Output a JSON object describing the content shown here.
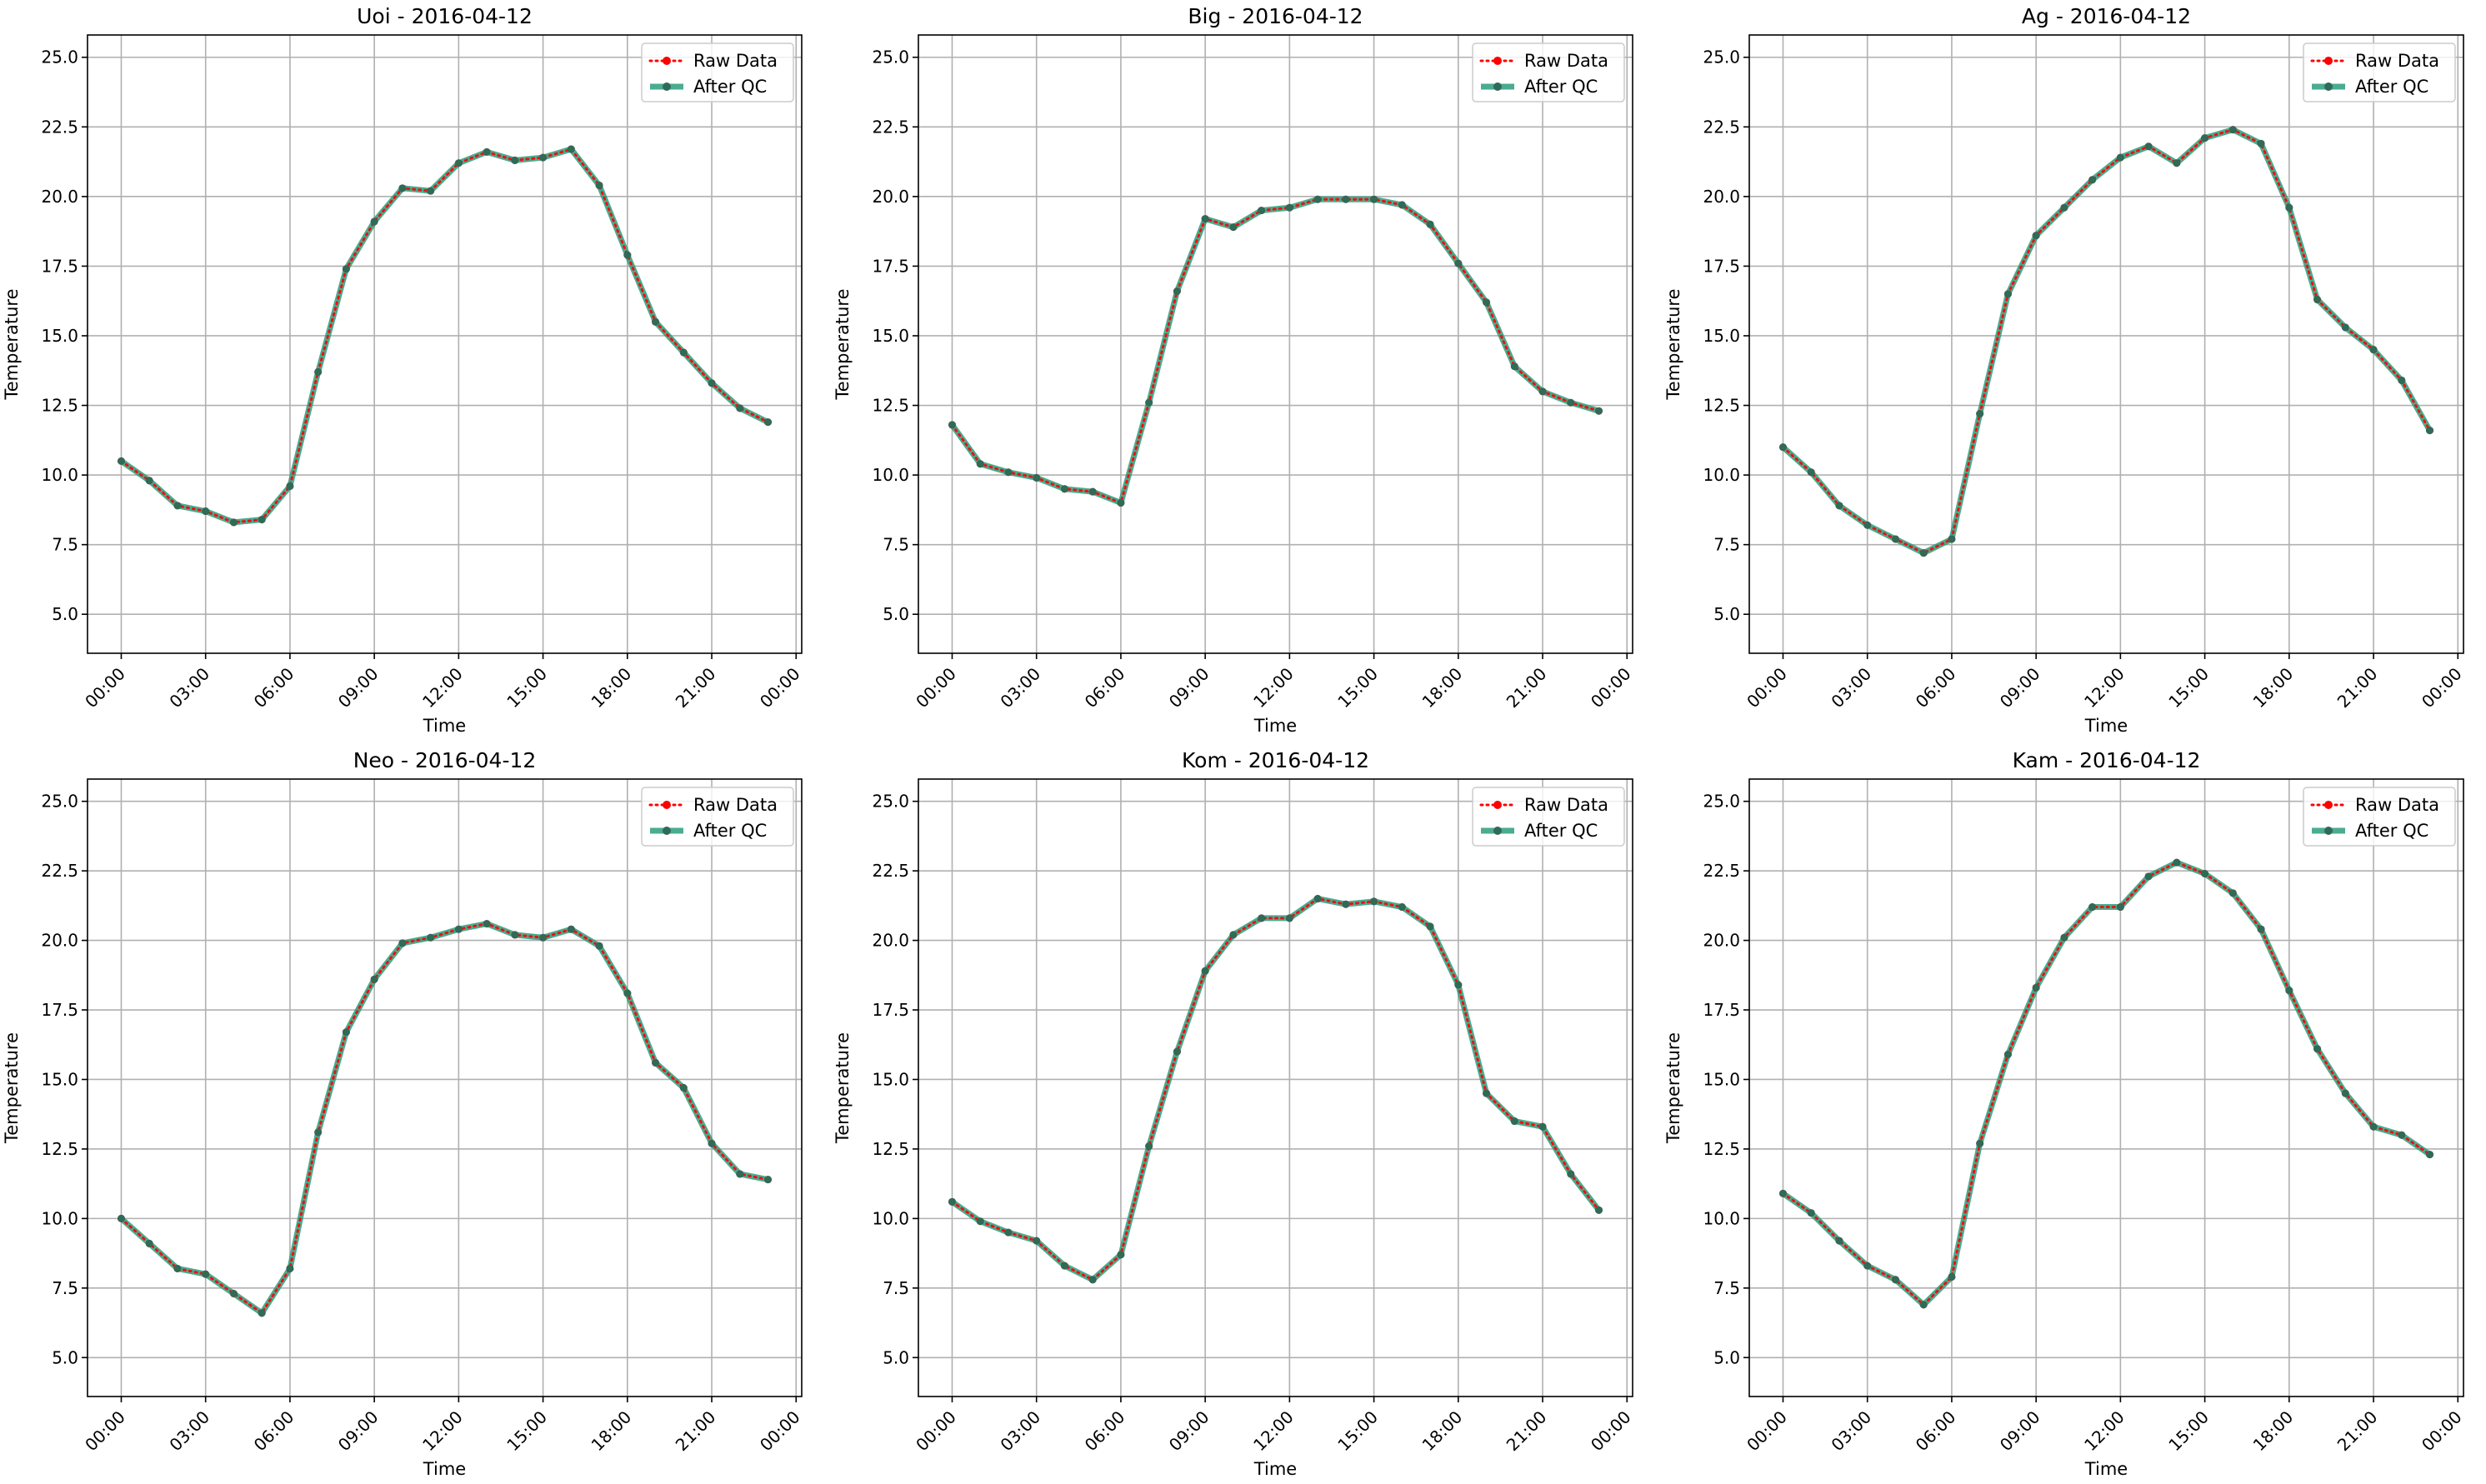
{
  "figure": {
    "title": "",
    "date": "2016-04-12"
  },
  "legend": [
    {
      "label": "Raw Data",
      "color": "#ff0000",
      "style": "dotted"
    },
    {
      "label": "After QC",
      "color": "#2a9d7c",
      "style": "solid"
    }
  ],
  "colors": {
    "raw": "#ff0000",
    "qc": "#2a9d7c",
    "qc_marker": "#2f6b58",
    "grid": "#b0b0b0"
  },
  "chart_data": [
    {
      "type": "line",
      "title": "Uoi - 2016-04-12",
      "xlabel": "Time",
      "ylabel": "Temperature",
      "ylim": [
        3.6,
        25.8
      ],
      "yticks": [
        "5.0",
        "7.5",
        "10.0",
        "12.5",
        "15.0",
        "17.5",
        "20.0",
        "22.5",
        "25.0"
      ],
      "xticks": [
        "00:00",
        "03:00",
        "06:00",
        "09:00",
        "12:00",
        "15:00",
        "18:00",
        "21:00",
        "00:00"
      ],
      "grid": true,
      "legend_position": "top-right",
      "x": [
        "00:00",
        "01:00",
        "02:00",
        "03:00",
        "04:00",
        "05:00",
        "06:00",
        "07:00",
        "08:00",
        "09:00",
        "10:00",
        "11:00",
        "12:00",
        "13:00",
        "14:00",
        "15:00",
        "16:00",
        "17:00",
        "18:00",
        "19:00",
        "20:00",
        "21:00",
        "22:00",
        "23:00"
      ],
      "series": [
        {
          "name": "Raw Data",
          "values": [
            10.5,
            9.8,
            8.9,
            8.7,
            8.3,
            8.4,
            9.6,
            13.7,
            17.4,
            19.1,
            20.3,
            20.2,
            21.2,
            21.6,
            21.3,
            21.4,
            21.7,
            20.4,
            17.9,
            15.5,
            14.4,
            13.3,
            12.4,
            11.9
          ]
        },
        {
          "name": "After QC",
          "values": [
            10.5,
            9.8,
            8.9,
            8.7,
            8.3,
            8.4,
            9.6,
            13.7,
            17.4,
            19.1,
            20.3,
            20.2,
            21.2,
            21.6,
            21.3,
            21.4,
            21.7,
            20.4,
            17.9,
            15.5,
            14.4,
            13.3,
            12.4,
            11.9
          ]
        }
      ]
    },
    {
      "type": "line",
      "title": "Big - 2016-04-12",
      "xlabel": "Time",
      "ylabel": "Temperature",
      "ylim": [
        3.6,
        25.8
      ],
      "yticks": [
        "5.0",
        "7.5",
        "10.0",
        "12.5",
        "15.0",
        "17.5",
        "20.0",
        "22.5",
        "25.0"
      ],
      "xticks": [
        "00:00",
        "03:00",
        "06:00",
        "09:00",
        "12:00",
        "15:00",
        "18:00",
        "21:00",
        "00:00"
      ],
      "grid": true,
      "legend_position": "top-right",
      "x": [
        "00:00",
        "01:00",
        "02:00",
        "03:00",
        "04:00",
        "05:00",
        "06:00",
        "07:00",
        "08:00",
        "09:00",
        "10:00",
        "11:00",
        "12:00",
        "13:00",
        "14:00",
        "15:00",
        "16:00",
        "17:00",
        "18:00",
        "19:00",
        "20:00",
        "21:00",
        "22:00",
        "23:00"
      ],
      "series": [
        {
          "name": "Raw Data",
          "values": [
            11.8,
            10.4,
            10.1,
            9.9,
            9.5,
            9.4,
            9.0,
            12.6,
            16.6,
            19.2,
            18.9,
            19.5,
            19.6,
            19.9,
            19.9,
            19.9,
            19.7,
            19.0,
            17.6,
            16.2,
            13.9,
            13.0,
            12.6,
            12.3
          ]
        },
        {
          "name": "After QC",
          "values": [
            11.8,
            10.4,
            10.1,
            9.9,
            9.5,
            9.4,
            9.0,
            12.6,
            16.6,
            19.2,
            18.9,
            19.5,
            19.6,
            19.9,
            19.9,
            19.9,
            19.7,
            19.0,
            17.6,
            16.2,
            13.9,
            13.0,
            12.6,
            12.3
          ]
        }
      ]
    },
    {
      "type": "line",
      "title": "Ag - 2016-04-12",
      "xlabel": "Time",
      "ylabel": "Temperature",
      "ylim": [
        3.6,
        25.8
      ],
      "yticks": [
        "5.0",
        "7.5",
        "10.0",
        "12.5",
        "15.0",
        "17.5",
        "20.0",
        "22.5",
        "25.0"
      ],
      "xticks": [
        "00:00",
        "03:00",
        "06:00",
        "09:00",
        "12:00",
        "15:00",
        "18:00",
        "21:00",
        "00:00"
      ],
      "grid": true,
      "legend_position": "top-right",
      "x": [
        "00:00",
        "01:00",
        "02:00",
        "03:00",
        "04:00",
        "05:00",
        "06:00",
        "07:00",
        "08:00",
        "09:00",
        "10:00",
        "11:00",
        "12:00",
        "13:00",
        "14:00",
        "15:00",
        "16:00",
        "17:00",
        "18:00",
        "19:00",
        "20:00",
        "21:00",
        "22:00",
        "23:00"
      ],
      "series": [
        {
          "name": "Raw Data",
          "values": [
            11.0,
            10.1,
            8.9,
            8.2,
            7.7,
            7.2,
            7.7,
            12.2,
            16.5,
            18.6,
            19.6,
            20.6,
            21.4,
            21.8,
            21.2,
            22.1,
            22.4,
            21.9,
            19.6,
            16.3,
            15.3,
            14.5,
            13.4,
            11.6
          ]
        },
        {
          "name": "After QC",
          "values": [
            11.0,
            10.1,
            8.9,
            8.2,
            7.7,
            7.2,
            7.7,
            12.2,
            16.5,
            18.6,
            19.6,
            20.6,
            21.4,
            21.8,
            21.2,
            22.1,
            22.4,
            21.9,
            19.6,
            16.3,
            15.3,
            14.5,
            13.4,
            11.6
          ]
        }
      ]
    },
    {
      "type": "line",
      "title": "Neo - 2016-04-12",
      "xlabel": "Time",
      "ylabel": "Temperature",
      "ylim": [
        3.6,
        25.8
      ],
      "yticks": [
        "5.0",
        "7.5",
        "10.0",
        "12.5",
        "15.0",
        "17.5",
        "20.0",
        "22.5",
        "25.0"
      ],
      "xticks": [
        "00:00",
        "03:00",
        "06:00",
        "09:00",
        "12:00",
        "15:00",
        "18:00",
        "21:00",
        "00:00"
      ],
      "grid": true,
      "legend_position": "top-right",
      "x": [
        "00:00",
        "01:00",
        "02:00",
        "03:00",
        "04:00",
        "05:00",
        "06:00",
        "07:00",
        "08:00",
        "09:00",
        "10:00",
        "11:00",
        "12:00",
        "13:00",
        "14:00",
        "15:00",
        "16:00",
        "17:00",
        "18:00",
        "19:00",
        "20:00",
        "21:00",
        "22:00",
        "23:00"
      ],
      "series": [
        {
          "name": "Raw Data",
          "values": [
            10.0,
            9.1,
            8.2,
            8.0,
            7.3,
            6.6,
            8.2,
            13.1,
            16.7,
            18.6,
            19.9,
            20.1,
            20.4,
            20.6,
            20.2,
            20.1,
            20.4,
            19.8,
            18.1,
            15.6,
            14.7,
            12.7,
            11.6,
            11.4
          ]
        },
        {
          "name": "After QC",
          "values": [
            10.0,
            9.1,
            8.2,
            8.0,
            7.3,
            6.6,
            8.2,
            13.1,
            16.7,
            18.6,
            19.9,
            20.1,
            20.4,
            20.6,
            20.2,
            20.1,
            20.4,
            19.8,
            18.1,
            15.6,
            14.7,
            12.7,
            11.6,
            11.4
          ]
        }
      ]
    },
    {
      "type": "line",
      "title": "Kom - 2016-04-12",
      "xlabel": "Time",
      "ylabel": "Temperature",
      "ylim": [
        3.6,
        25.8
      ],
      "yticks": [
        "5.0",
        "7.5",
        "10.0",
        "12.5",
        "15.0",
        "17.5",
        "20.0",
        "22.5",
        "25.0"
      ],
      "xticks": [
        "00:00",
        "03:00",
        "06:00",
        "09:00",
        "12:00",
        "15:00",
        "18:00",
        "21:00",
        "00:00"
      ],
      "grid": true,
      "legend_position": "top-right",
      "x": [
        "00:00",
        "01:00",
        "02:00",
        "03:00",
        "04:00",
        "05:00",
        "06:00",
        "07:00",
        "08:00",
        "09:00",
        "10:00",
        "11:00",
        "12:00",
        "13:00",
        "14:00",
        "15:00",
        "16:00",
        "17:00",
        "18:00",
        "19:00",
        "20:00",
        "21:00",
        "22:00",
        "23:00"
      ],
      "series": [
        {
          "name": "Raw Data",
          "values": [
            10.6,
            9.9,
            9.5,
            9.2,
            8.3,
            7.8,
            8.7,
            12.6,
            16.0,
            18.9,
            20.2,
            20.8,
            20.8,
            21.5,
            21.3,
            21.4,
            21.2,
            20.5,
            18.4,
            14.5,
            13.5,
            13.3,
            11.6,
            10.3
          ]
        },
        {
          "name": "After QC",
          "values": [
            10.6,
            9.9,
            9.5,
            9.2,
            8.3,
            7.8,
            8.7,
            12.6,
            16.0,
            18.9,
            20.2,
            20.8,
            20.8,
            21.5,
            21.3,
            21.4,
            21.2,
            20.5,
            18.4,
            14.5,
            13.5,
            13.3,
            11.6,
            10.3
          ]
        }
      ]
    },
    {
      "type": "line",
      "title": "Kam - 2016-04-12",
      "xlabel": "Time",
      "ylabel": "Temperature",
      "ylim": [
        3.6,
        25.8
      ],
      "yticks": [
        "5.0",
        "7.5",
        "10.0",
        "12.5",
        "15.0",
        "17.5",
        "20.0",
        "22.5",
        "25.0"
      ],
      "xticks": [
        "00:00",
        "03:00",
        "06:00",
        "09:00",
        "12:00",
        "15:00",
        "18:00",
        "21:00",
        "00:00"
      ],
      "grid": true,
      "legend_position": "top-right",
      "x": [
        "00:00",
        "01:00",
        "02:00",
        "03:00",
        "04:00",
        "05:00",
        "06:00",
        "07:00",
        "08:00",
        "09:00",
        "10:00",
        "11:00",
        "12:00",
        "13:00",
        "14:00",
        "15:00",
        "16:00",
        "17:00",
        "18:00",
        "19:00",
        "20:00",
        "21:00",
        "22:00",
        "23:00"
      ],
      "series": [
        {
          "name": "Raw Data",
          "values": [
            10.9,
            10.2,
            9.2,
            8.3,
            7.8,
            6.9,
            7.9,
            12.7,
            15.9,
            18.3,
            20.1,
            21.2,
            21.2,
            22.3,
            22.8,
            22.4,
            21.7,
            20.4,
            18.2,
            16.1,
            14.5,
            13.3,
            13.0,
            12.3
          ]
        },
        {
          "name": "After QC",
          "values": [
            10.9,
            10.2,
            9.2,
            8.3,
            7.8,
            6.9,
            7.9,
            12.7,
            15.9,
            18.3,
            20.1,
            21.2,
            21.2,
            22.3,
            22.8,
            22.4,
            21.7,
            20.4,
            18.2,
            16.1,
            14.5,
            13.3,
            13.0,
            12.3
          ]
        }
      ]
    }
  ]
}
